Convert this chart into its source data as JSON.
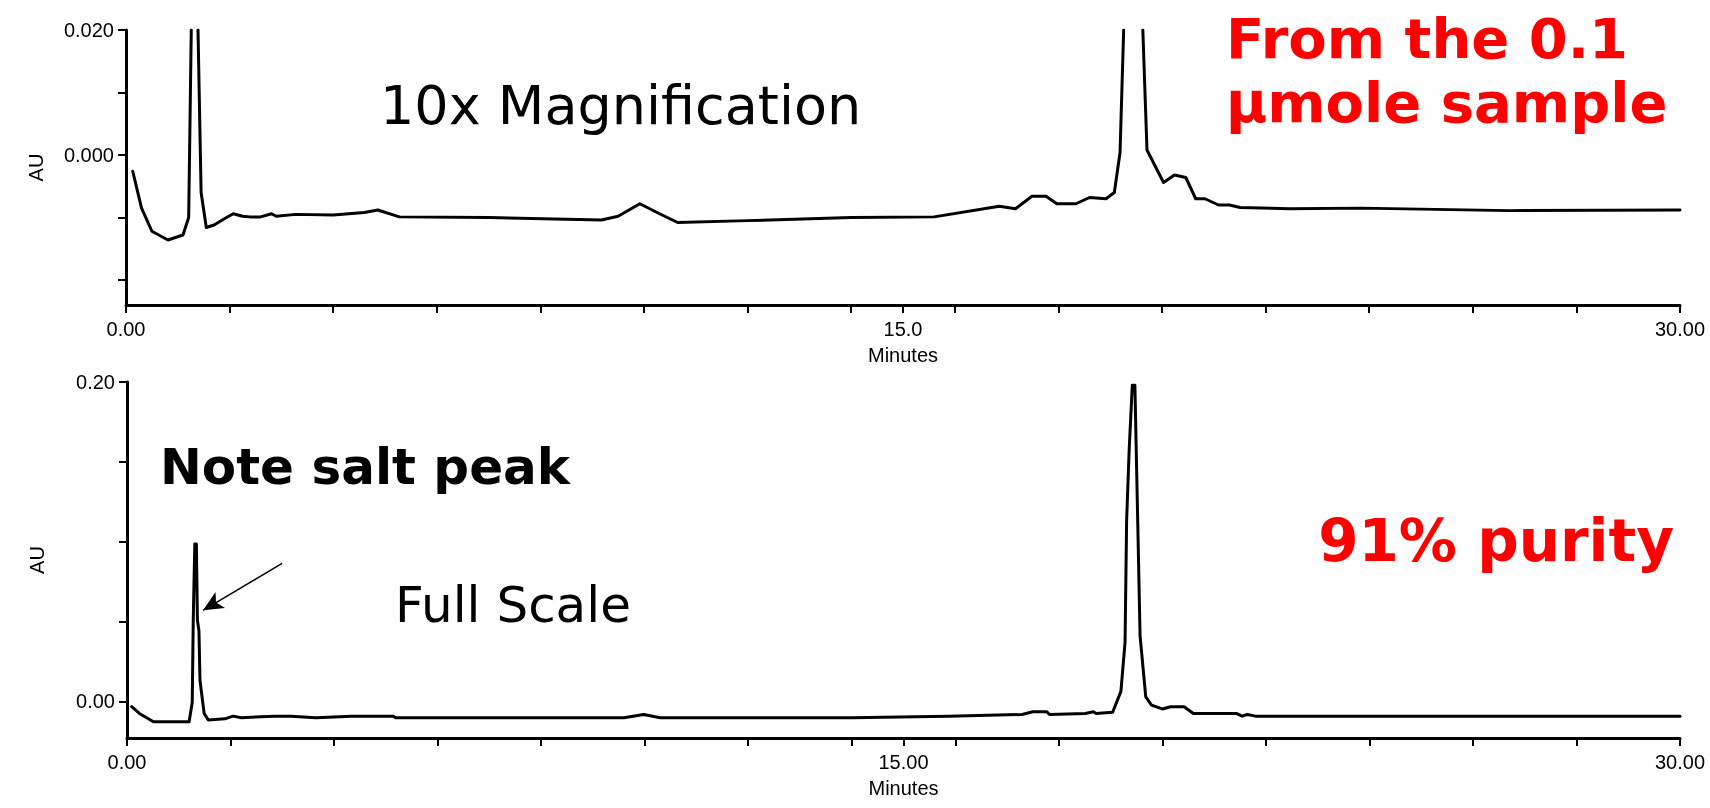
{
  "chart_data": [
    {
      "type": "line",
      "xlabel": "Minutes",
      "ylabel": "AU",
      "x": [
        0.13,
        0.3,
        0.5,
        0.81,
        1.1,
        1.21,
        1.26,
        null,
        1.39,
        1.45,
        1.55,
        1.7,
        1.9,
        2.07,
        2.25,
        2.39,
        2.6,
        2.81,
        2.9,
        3.28,
        4.0,
        4.6,
        4.86,
        5.28,
        7.0,
        9.18,
        9.5,
        9.92,
        10.3,
        10.65,
        12.0,
        14.0,
        15.6,
        16.86,
        17.17,
        17.49,
        17.76,
        17.97,
        18.34,
        18.6,
        18.92,
        19.08,
        19.19,
        19.26,
        null,
        19.63,
        19.71,
        20.03,
        20.24,
        20.46,
        20.65,
        20.83,
        21.09,
        21.3,
        21.51,
        22.47,
        23.84,
        26.7,
        30.0
      ],
      "series": [
        {
          "color": "#000000",
          "values": [
            -0.0026,
            -0.0085,
            -0.0122,
            -0.0136,
            -0.0128,
            -0.01,
            0.02,
            null,
            0.02,
            -0.006,
            -0.0116,
            -0.0112,
            -0.0102,
            -0.0094,
            -0.0098,
            -0.0099,
            -0.0099,
            -0.0094,
            -0.0098,
            -0.0095,
            -0.0096,
            -0.0092,
            -0.0088,
            -0.0099,
            -0.01,
            -0.0104,
            -0.0098,
            -0.0078,
            -0.0094,
            -0.0108,
            -0.0105,
            -0.01,
            -0.0099,
            -0.0082,
            -0.0086,
            -0.0066,
            -0.0066,
            -0.0078,
            -0.0078,
            -0.0068,
            -0.007,
            -0.006,
            0.0004,
            0.02,
            null,
            0.02,
            0.0008,
            -0.0044,
            -0.0032,
            -0.0036,
            -0.007,
            -0.007,
            -0.008,
            -0.008,
            -0.0084,
            -0.0086,
            -0.0085,
            -0.0089,
            -0.0088
          ]
        }
      ],
      "xlim": [
        0,
        30
      ],
      "ylim": [
        -0.024,
        0.02
      ],
      "xticks": [
        {
          "value": 0,
          "label": "0.00"
        },
        {
          "value": 2,
          "label": null
        },
        {
          "value": 4,
          "label": null
        },
        {
          "value": 6,
          "label": null
        },
        {
          "value": 8,
          "label": null
        },
        {
          "value": 10,
          "label": null
        },
        {
          "value": 12,
          "label": null
        },
        {
          "value": 14,
          "label": null
        },
        {
          "value": 15,
          "label": "15.0"
        },
        {
          "value": 16,
          "label": null
        },
        {
          "value": 18,
          "label": null
        },
        {
          "value": 20,
          "label": null
        },
        {
          "value": 22,
          "label": null
        },
        {
          "value": 24,
          "label": null
        },
        {
          "value": 26,
          "label": null
        },
        {
          "value": 28,
          "label": null
        },
        {
          "value": 30,
          "label": "30.00"
        }
      ],
      "yticks": [
        {
          "value": -0.02,
          "label": null
        },
        {
          "value": -0.01,
          "label": null
        },
        {
          "value": 0,
          "label": "0.000"
        },
        {
          "value": 0.01,
          "label": null
        },
        {
          "value": 0.02,
          "label": "0.020"
        }
      ],
      "grid": false,
      "marker": "none",
      "line_style": "solid",
      "annotations": [
        "10x Magnification",
        "From the 0.1 μmole sample"
      ]
    },
    {
      "type": "line",
      "xlabel": "Minutes",
      "ylabel": "AU",
      "x": [
        0.09,
        0.24,
        0.51,
        1.2,
        1.26,
        1.28,
        1.31,
        1.34,
        1.36,
        1.39,
        1.41,
        1.49,
        1.57,
        1.89,
        2.05,
        2.21,
        2.85,
        3.17,
        3.65,
        4.34,
        5.14,
        5.19,
        9.6,
        9.98,
        10.3,
        14.0,
        15.86,
        17.29,
        17.5,
        17.77,
        17.82,
        18.51,
        18.67,
        18.72,
        19.04,
        19.2,
        19.28,
        19.31,
        19.36,
        19.42,
        19.47,
        19.52,
        19.57,
        19.68,
        19.79,
        20.0,
        20.16,
        20.42,
        20.6,
        21.43,
        21.54,
        21.64,
        21.8,
        30.0
      ],
      "series": [
        {
          "color": "#000000",
          "values": [
            -0.0034,
            -0.0076,
            -0.0128,
            -0.0128,
            -0.0007,
            0.051,
            0.0986,
            0.0986,
            0.051,
            0.044,
            0.013,
            -0.0076,
            -0.0117,
            -0.011,
            -0.0093,
            -0.0103,
            -0.0093,
            -0.0093,
            -0.0103,
            -0.0093,
            -0.0093,
            -0.0103,
            -0.0103,
            -0.0083,
            -0.0103,
            -0.0103,
            -0.0093,
            -0.0083,
            -0.0066,
            -0.0066,
            -0.0083,
            -0.0076,
            -0.0066,
            -0.0076,
            -0.0069,
            0.0062,
            0.037,
            0.113,
            0.158,
            0.198,
            0.198,
            0.12,
            0.041,
            0.0028,
            -0.0024,
            -0.0048,
            -0.0034,
            -0.0034,
            -0.0076,
            -0.0076,
            -0.0093,
            -0.0083,
            -0.0093,
            -0.0093
          ]
        }
      ],
      "xlim": [
        0,
        30
      ],
      "ylim": [
        -0.023,
        0.2
      ],
      "xticks": [
        {
          "value": 0,
          "label": "0.00"
        },
        {
          "value": 2,
          "label": null
        },
        {
          "value": 4,
          "label": null
        },
        {
          "value": 6,
          "label": null
        },
        {
          "value": 8,
          "label": null
        },
        {
          "value": 10,
          "label": null
        },
        {
          "value": 12,
          "label": null
        },
        {
          "value": 14,
          "label": null
        },
        {
          "value": 15,
          "label": "15.00"
        },
        {
          "value": 16,
          "label": null
        },
        {
          "value": 18,
          "label": null
        },
        {
          "value": 20,
          "label": null
        },
        {
          "value": 22,
          "label": null
        },
        {
          "value": 24,
          "label": null
        },
        {
          "value": 26,
          "label": null
        },
        {
          "value": 28,
          "label": null
        },
        {
          "value": 30,
          "label": "30.00"
        }
      ],
      "yticks": [
        {
          "value": 0,
          "label": "0.00"
        },
        {
          "value": 0.05,
          "label": null
        },
        {
          "value": 0.1,
          "label": null
        },
        {
          "value": 0.15,
          "label": null
        },
        {
          "value": 0.2,
          "label": "0.20"
        }
      ],
      "grid": false,
      "marker": "none",
      "line_style": "solid",
      "annotations": [
        {
          "text": "Note salt peak",
          "x": 1.47,
          "y": 0.057
        },
        "Full Scale",
        "91% purity"
      ]
    }
  ]
}
